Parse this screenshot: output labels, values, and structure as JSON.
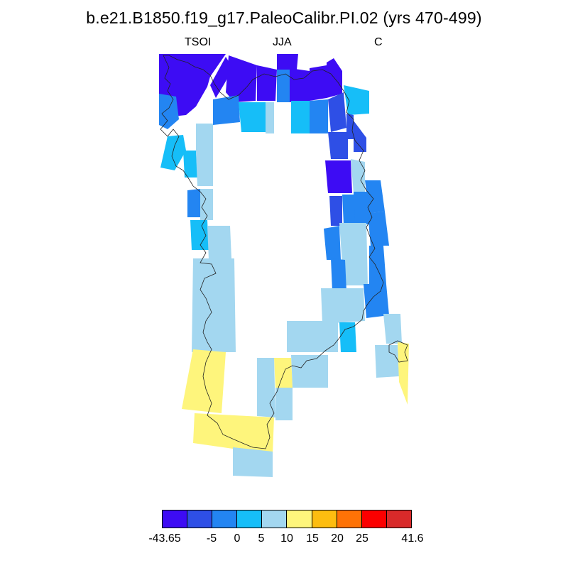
{
  "title": "b.e21.B1850.f19_g17.PaleoCalibr.PI.02 (yrs 470-499)",
  "subtitles": {
    "left": "TSOI",
    "center": "JJA",
    "right": "C"
  },
  "colors": {
    "c1": "#3d0cf4",
    "c2": "#2e4fe6",
    "c3": "#2385f2",
    "c4": "#16bef8",
    "c5": "#a3d7f0",
    "c6": "#fef57c",
    "c7": "#fdbd10",
    "c8": "#fe7206",
    "c9": "#fb0000",
    "c10": "#d82a2a"
  },
  "legend": {
    "colors": [
      "#3d0cf4",
      "#2e4fe6",
      "#2385f2",
      "#16bef8",
      "#a3d7f0",
      "#fef57c",
      "#fdbd10",
      "#fe7206",
      "#fb0000",
      "#d82a2a"
    ],
    "labels": [
      "-43.65",
      "-5",
      "0",
      "5",
      "10",
      "15",
      "20",
      "25",
      "41.6"
    ]
  }
}
